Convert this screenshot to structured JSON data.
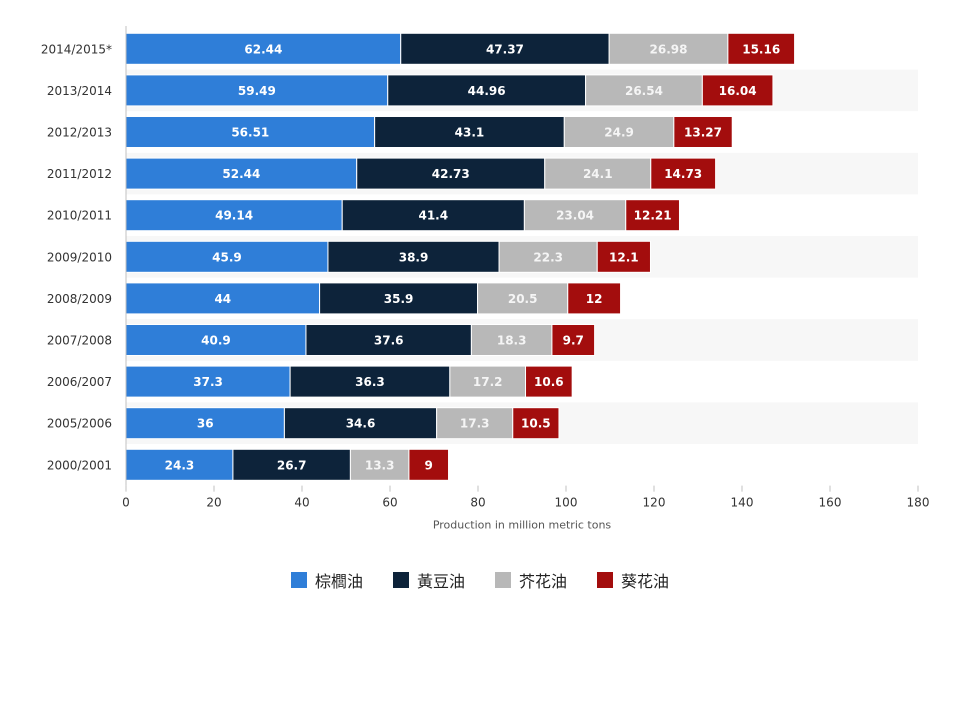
{
  "chart_data": {
    "type": "bar",
    "orientation": "horizontal",
    "stacked": true,
    "categories": [
      "2014/2015*",
      "2013/2014",
      "2012/2013",
      "2011/2012",
      "2010/2011",
      "2009/2010",
      "2008/2009",
      "2007/2008",
      "2006/2007",
      "2005/2006",
      "2000/2001"
    ],
    "series": [
      {
        "name": "棕櫚油",
        "color": "#2f7ed8",
        "label_color": "#ffffff",
        "values": [
          62.44,
          59.49,
          56.51,
          52.44,
          49.14,
          45.9,
          44,
          40.9,
          37.3,
          36,
          24.3
        ]
      },
      {
        "name": "黃豆油",
        "color": "#0d233a",
        "label_color": "#ffffff",
        "values": [
          47.37,
          44.96,
          43.1,
          42.73,
          41.4,
          38.9,
          35.9,
          37.6,
          36.3,
          34.6,
          26.7
        ]
      },
      {
        "name": "芥花油",
        "color": "#b8b8b8",
        "label_color": "#f5f5f5",
        "values": [
          26.98,
          26.54,
          24.9,
          24.1,
          23.04,
          22.3,
          20.5,
          18.3,
          17.2,
          17.3,
          13.3
        ]
      },
      {
        "name": "葵花油",
        "color": "#a30d0d",
        "label_color": "#ffffff",
        "values": [
          15.16,
          16.04,
          13.27,
          14.73,
          12.21,
          12.1,
          12,
          9.7,
          10.6,
          10.5,
          9
        ]
      }
    ],
    "value_labels": [
      [
        "62.44",
        "59.49",
        "56.51",
        "52.44",
        "49.14",
        "45.9",
        "44",
        "40.9",
        "37.3",
        "36",
        "24.3"
      ],
      [
        "47.37",
        "44.96",
        "43.1",
        "42.73",
        "41.4",
        "38.9",
        "35.9",
        "37.6",
        "36.3",
        "34.6",
        "26.7"
      ],
      [
        "26.98",
        "26.54",
        "24.9",
        "24.1",
        "23.04",
        "22.3",
        "20.5",
        "18.3",
        "17.2",
        "17.3",
        "13.3"
      ],
      [
        "15.16",
        "16.04",
        "13.27",
        "14.73",
        "12.21",
        "12.1",
        "12",
        "9.7",
        "10.6",
        "10.5",
        "9"
      ]
    ],
    "xlabel": "Production in million metric tons",
    "xlim": [
      0,
      180
    ],
    "xticks": [
      0,
      20,
      40,
      60,
      80,
      100,
      120,
      140,
      160,
      180
    ],
    "grid": false,
    "alternating_row_bands": true,
    "legend_position": "bottom"
  }
}
